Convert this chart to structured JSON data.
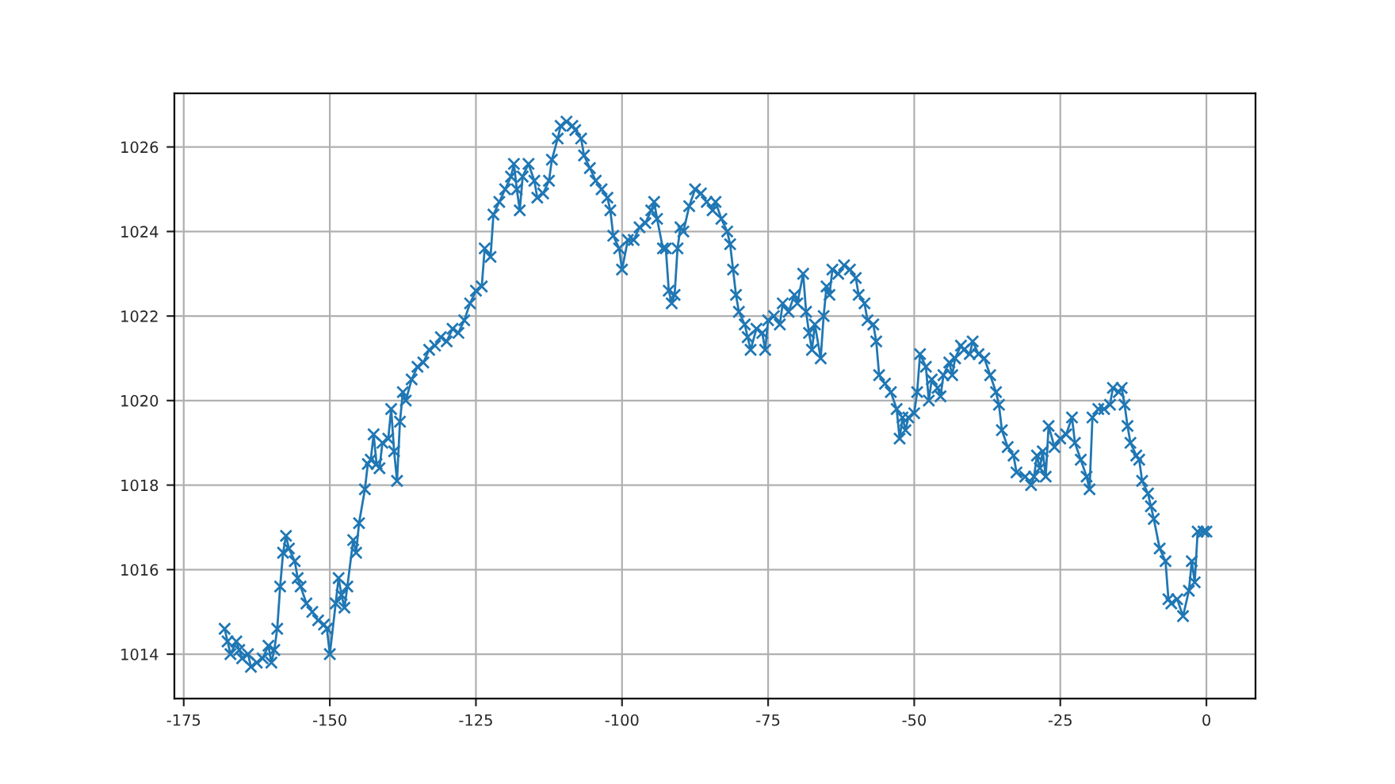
{
  "chart_data": {
    "type": "line",
    "marker": "cross",
    "line_style": "solid",
    "grid": true,
    "xlim": [
      -176.6,
      8.4
    ],
    "ylim": [
      1012.95,
      1027.27
    ],
    "xticks": [
      -175,
      -150,
      -125,
      -100,
      -75,
      -50,
      -25,
      0
    ],
    "yticks": [
      1014,
      1016,
      1018,
      1020,
      1022,
      1024,
      1026
    ],
    "series": [
      {
        "color": "#1f77b4",
        "x": [
          -168,
          -167.5,
          -167,
          -166,
          -165.5,
          -165,
          -164,
          -163.5,
          -162.5,
          -161.5,
          -160.5,
          -160,
          -159.5,
          -159,
          -158.5,
          -158,
          -157.5,
          -157,
          -156,
          -155.5,
          -155,
          -154,
          -153,
          -152,
          -151,
          -150.5,
          -150,
          -149,
          -148.5,
          -148,
          -147.5,
          -147,
          -146,
          -145.5,
          -145,
          -144,
          -143.5,
          -143,
          -142.5,
          -142,
          -141.5,
          -141,
          -140,
          -139.5,
          -139,
          -138.5,
          -138,
          -137.5,
          -137,
          -136,
          -135,
          -134,
          -133,
          -132,
          -131,
          -130,
          -129,
          -128,
          -127,
          -126,
          -125,
          -124,
          -123.5,
          -122.5,
          -122,
          -121,
          -120,
          -119,
          -118.5,
          -118,
          -117.5,
          -117,
          -116,
          -115,
          -114.5,
          -113.5,
          -112.5,
          -112,
          -111,
          -110.5,
          -109.5,
          -108.5,
          -108,
          -107,
          -106.5,
          -105.5,
          -104.5,
          -103.5,
          -102.5,
          -102,
          -101.5,
          -100.5,
          -100,
          -99,
          -98,
          -97,
          -96,
          -95,
          -94.5,
          -94,
          -93,
          -92.5,
          -92,
          -91.5,
          -91,
          -90.5,
          -90,
          -89.5,
          -88.5,
          -87.5,
          -86.5,
          -85.5,
          -84.5,
          -84,
          -83,
          -82,
          -81.5,
          -81,
          -80.5,
          -80,
          -79,
          -78.5,
          -78,
          -77,
          -76,
          -75.5,
          -75,
          -74,
          -73,
          -72.5,
          -71.5,
          -70.5,
          -70,
          -69,
          -68.5,
          -68,
          -67.5,
          -67,
          -66,
          -65.5,
          -65,
          -64.5,
          -64,
          -63,
          -62,
          -61,
          -60,
          -59.5,
          -58.5,
          -58,
          -57,
          -56.5,
          -56,
          -55,
          -54,
          -53,
          -52.5,
          -52,
          -51.5,
          -51,
          -50,
          -49.5,
          -49,
          -48,
          -47.5,
          -47,
          -46,
          -45.5,
          -45,
          -44,
          -43.5,
          -43,
          -42,
          -41.5,
          -40.5,
          -40,
          -39,
          -38,
          -37,
          -36,
          -35.5,
          -35,
          -34,
          -33,
          -32.5,
          -31,
          -30,
          -29.5,
          -29,
          -28.5,
          -28,
          -27.5,
          -27,
          -26,
          -25,
          -24,
          -23,
          -22.5,
          -21.5,
          -20.5,
          -20,
          -19.5,
          -18.5,
          -17.5,
          -16.5,
          -16,
          -15,
          -14.5,
          -14,
          -13.5,
          -13,
          -12,
          -11.5,
          -11,
          -10,
          -9.5,
          -9,
          -8,
          -7,
          -6.5,
          -6,
          -5,
          -4,
          -3,
          -2.5,
          -2,
          -1.5,
          -0.5,
          0
        ],
        "values": [
          1014.6,
          1014.3,
          1014.0,
          1014.3,
          1014.1,
          1013.9,
          1014.0,
          1013.7,
          1013.8,
          1013.9,
          1014.2,
          1013.8,
          1014.1,
          1014.6,
          1015.6,
          1016.4,
          1016.8,
          1016.5,
          1016.2,
          1015.8,
          1015.6,
          1015.2,
          1015.0,
          1014.8,
          1014.7,
          1014.6,
          1014.0,
          1015.2,
          1015.8,
          1015.4,
          1015.1,
          1015.6,
          1016.7,
          1016.4,
          1017.1,
          1017.9,
          1018.5,
          1018.6,
          1019.2,
          1018.5,
          1018.4,
          1019.0,
          1019.1,
          1019.8,
          1018.8,
          1018.1,
          1019.5,
          1020.2,
          1020.0,
          1020.5,
          1020.8,
          1020.9,
          1021.2,
          1021.3,
          1021.5,
          1021.4,
          1021.7,
          1021.6,
          1021.9,
          1022.3,
          1022.6,
          1022.7,
          1023.6,
          1023.4,
          1024.4,
          1024.7,
          1025.0,
          1025.3,
          1025.6,
          1025.0,
          1024.5,
          1025.3,
          1025.6,
          1025.2,
          1024.8,
          1024.9,
          1025.2,
          1025.7,
          1026.2,
          1026.5,
          1026.6,
          1026.5,
          1026.4,
          1026.2,
          1025.8,
          1025.5,
          1025.2,
          1025.0,
          1024.8,
          1024.5,
          1023.9,
          1023.6,
          1023.1,
          1023.8,
          1023.8,
          1024.1,
          1024.2,
          1024.5,
          1024.7,
          1024.3,
          1023.6,
          1023.6,
          1022.6,
          1022.3,
          1022.5,
          1023.6,
          1024.1,
          1024.0,
          1024.6,
          1025.0,
          1024.9,
          1024.7,
          1024.5,
          1024.7,
          1024.3,
          1024.0,
          1023.7,
          1023.1,
          1022.5,
          1022.1,
          1021.8,
          1021.5,
          1021.2,
          1021.7,
          1021.6,
          1021.2,
          1021.9,
          1022.0,
          1021.8,
          1022.3,
          1022.1,
          1022.5,
          1022.3,
          1023.0,
          1022.1,
          1021.6,
          1021.2,
          1021.8,
          1021.0,
          1022.0,
          1022.7,
          1022.5,
          1023.1,
          1023.0,
          1023.2,
          1023.1,
          1022.9,
          1022.5,
          1022.3,
          1021.9,
          1021.8,
          1021.4,
          1020.6,
          1020.4,
          1020.2,
          1019.8,
          1019.1,
          1019.6,
          1019.3,
          1019.6,
          1019.7,
          1020.2,
          1021.1,
          1020.8,
          1020.0,
          1020.5,
          1020.3,
          1020.1,
          1020.6,
          1020.9,
          1020.6,
          1021.0,
          1021.3,
          1021.2,
          1021.1,
          1021.4,
          1021.1,
          1021.0,
          1020.6,
          1020.2,
          1019.9,
          1019.3,
          1018.9,
          1018.7,
          1018.3,
          1018.2,
          1018.0,
          1018.2,
          1018.7,
          1018.4,
          1018.8,
          1018.2,
          1019.4,
          1018.9,
          1019.1,
          1019.2,
          1019.6,
          1019.0,
          1018.6,
          1018.2,
          1017.9,
          1019.6,
          1019.8,
          1019.8,
          1019.9,
          1020.3,
          1020.2,
          1020.3,
          1019.9,
          1019.4,
          1019.0,
          1018.7,
          1018.6,
          1018.1,
          1017.8,
          1017.5,
          1017.2,
          1016.5,
          1016.2,
          1015.3,
          1015.2,
          1015.3,
          1014.9,
          1015.5,
          1016.2,
          1015.7,
          1016.9,
          1016.9,
          1016.9
        ]
      }
    ]
  }
}
